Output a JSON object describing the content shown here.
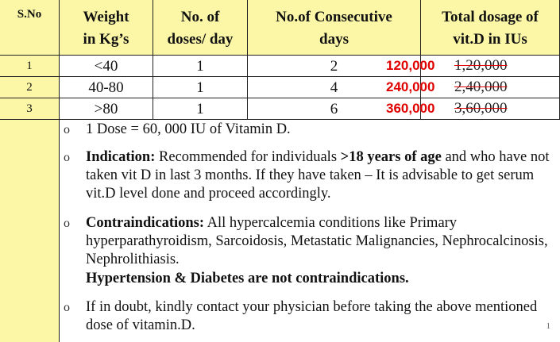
{
  "table": {
    "headers": [
      [
        "S.No"
      ],
      [
        "Weight",
        "in Kg’s"
      ],
      [
        "No. of",
        "doses/ day"
      ],
      [
        "No.of Consecutive",
        "days"
      ],
      [
        "Total dosage of",
        "vit.D in IUs"
      ]
    ],
    "rows": [
      [
        "1",
        "<40",
        "1",
        "2",
        "120,000",
        "1,20,000"
      ],
      [
        "2",
        "40-80",
        "1",
        "4",
        "240,000",
        "2,40,000"
      ],
      [
        "3",
        ">80",
        "1",
        "6",
        "360,000",
        "3,60,000"
      ]
    ]
  },
  "notes": [
    {
      "segments": [
        {
          "text": "1 Dose = 60, 000 IU of Vitamin D.",
          "bold": false
        }
      ]
    },
    {
      "segments": [
        {
          "text": "Indication:",
          "bold": true
        },
        {
          "text": " Recommended for individuals ",
          "bold": false
        },
        {
          "text": ">18 years of age",
          "bold": true
        },
        {
          "text": " and who have not taken vit D in last 3 months. If they have taken – It is advisable to get serum vit.D level done and proceed accordingly.",
          "bold": false
        }
      ]
    },
    {
      "segments": [
        {
          "text": "Contraindications:",
          "bold": true
        },
        {
          "text": " All hypercalcemia conditions like Primary hyperparathyroidism, Sarcoidosis, Metastatic Malignancies, Nephrocalcinosis, Nephrolithiasis.",
          "bold": false
        }
      ]
    },
    {
      "segments": [
        {
          "text": "If in doubt, kindly contact your physician before taking the above mentioned dose of vitamin.D.",
          "bold": false
        }
      ]
    }
  ],
  "emphasis": "Hypertension & Diabetes are not contraindications.",
  "bullet": "o",
  "page_number": "1"
}
